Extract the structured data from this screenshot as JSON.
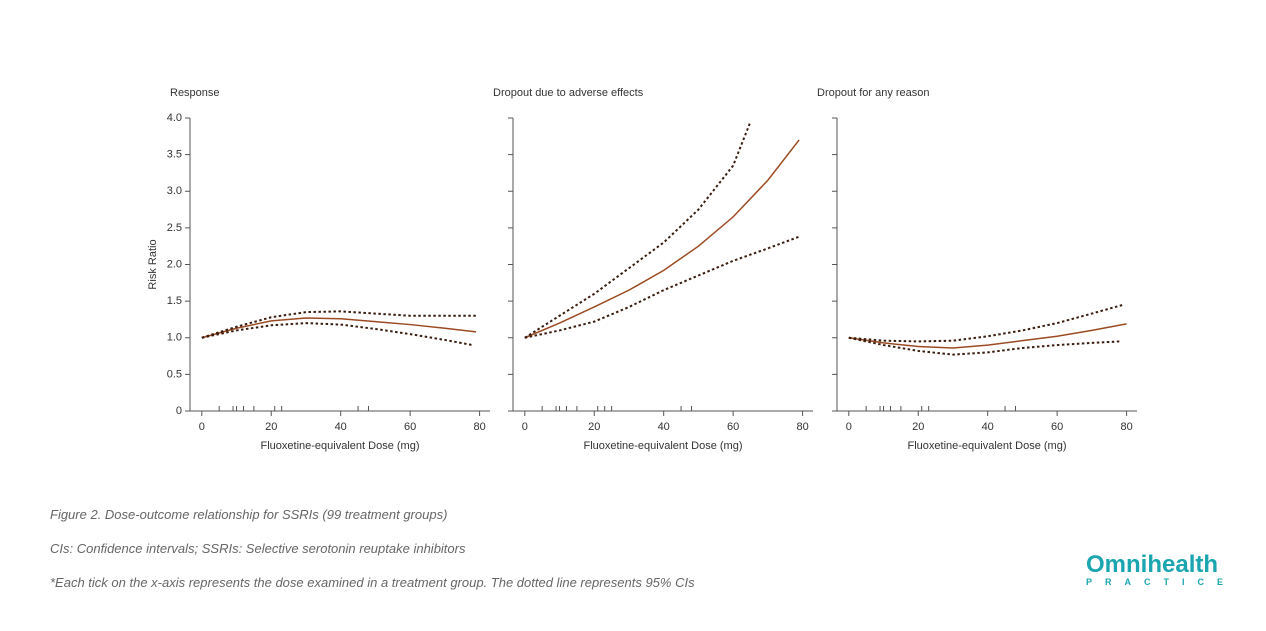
{
  "chart_data": [
    {
      "type": "line",
      "title": "Response",
      "x_label": "Fluoxetine-equivalent Dose (mg)",
      "y_label": "Risk Ratio",
      "xlim": [
        -3.4,
        83
      ],
      "xticks": [
        0,
        20,
        40,
        60,
        80
      ],
      "ylim": [
        0,
        4
      ],
      "yticks": [
        0,
        0.5,
        {
          "value": 1,
          "label": "1.0"
        },
        1.5,
        {
          "value": 2,
          "label": "2.0"
        },
        2.5,
        {
          "value": 3,
          "label": "3.0"
        },
        3.5,
        {
          "value": 4,
          "label": "4.0"
        }
      ],
      "ytick_labels": true,
      "rug": [
        5,
        9,
        10,
        12,
        15,
        21,
        23,
        45,
        48
      ],
      "series": [
        {
          "color": "#9c4a22",
          "dotted": false,
          "x": [
            0,
            10,
            20,
            30,
            40,
            50,
            60,
            70,
            79
          ],
          "values": [
            1.0,
            1.13,
            1.23,
            1.27,
            1.26,
            1.22,
            1.18,
            1.13,
            1.08
          ]
        },
        {
          "color": "#3a1d0e",
          "dotted": true,
          "x": [
            0,
            10,
            20,
            30,
            40,
            50,
            60,
            70,
            79
          ],
          "values": [
            1.0,
            1.15,
            1.28,
            1.35,
            1.36,
            1.33,
            1.3,
            1.3,
            1.3
          ]
        },
        {
          "color": "#3a1d0e",
          "dotted": true,
          "x": [
            0,
            10,
            20,
            30,
            40,
            50,
            60,
            70,
            78
          ],
          "values": [
            1.0,
            1.1,
            1.17,
            1.2,
            1.18,
            1.12,
            1.05,
            0.97,
            0.9
          ]
        }
      ]
    },
    {
      "type": "line",
      "title": "Dropout due to adverse effects",
      "x_label": "Fluoxetine-equivalent Dose (mg)",
      "xlim": [
        -3.4,
        83
      ],
      "xticks": [
        0,
        20,
        40,
        60,
        80
      ],
      "ylim": [
        0,
        4
      ],
      "yticks": [
        0,
        0.5,
        1,
        1.5,
        2,
        2.5,
        3,
        3.5,
        4
      ],
      "ytick_labels": false,
      "rug": [
        5,
        9,
        10,
        12,
        15,
        21,
        23,
        25,
        45,
        48
      ],
      "series": [
        {
          "color": "#9c4a22",
          "dotted": false,
          "x": [
            0,
            10,
            20,
            30,
            40,
            50,
            60,
            70,
            79
          ],
          "values": [
            1.0,
            1.2,
            1.42,
            1.65,
            1.92,
            2.25,
            2.65,
            3.15,
            3.7
          ]
        },
        {
          "color": "#3a1d0e",
          "dotted": true,
          "x": [
            0,
            10,
            20,
            30,
            40,
            50,
            60,
            65
          ],
          "values": [
            1.0,
            1.3,
            1.6,
            1.95,
            2.3,
            2.75,
            3.35,
            3.95
          ]
        },
        {
          "color": "#3a1d0e",
          "dotted": true,
          "x": [
            0,
            10,
            20,
            30,
            40,
            50,
            60,
            70,
            79
          ],
          "values": [
            1.0,
            1.1,
            1.22,
            1.42,
            1.65,
            1.85,
            2.05,
            2.22,
            2.38
          ]
        }
      ]
    },
    {
      "type": "line",
      "title": "Dropout for any reason",
      "x_label": "Fluoxetine-equivalent Dose (mg)",
      "xlim": [
        -3.4,
        83
      ],
      "xticks": [
        0,
        20,
        40,
        60,
        80
      ],
      "ylim": [
        0,
        4
      ],
      "yticks": [
        0,
        0.5,
        1,
        1.5,
        2,
        2.5,
        3,
        3.5,
        4
      ],
      "ytick_labels": false,
      "rug": [
        5,
        9,
        10,
        12,
        15,
        21,
        23,
        45,
        48
      ],
      "series": [
        {
          "color": "#9c4a22",
          "dotted": false,
          "x": [
            0,
            10,
            20,
            30,
            40,
            50,
            60,
            70,
            80
          ],
          "values": [
            1.0,
            0.93,
            0.88,
            0.86,
            0.9,
            0.96,
            1.02,
            1.1,
            1.19
          ]
        },
        {
          "color": "#3a1d0e",
          "dotted": true,
          "x": [
            0,
            10,
            20,
            30,
            40,
            50,
            60,
            70,
            79
          ],
          "values": [
            1.0,
            0.96,
            0.95,
            0.96,
            1.02,
            1.1,
            1.2,
            1.33,
            1.45
          ]
        },
        {
          "color": "#3a1d0e",
          "dotted": true,
          "x": [
            0,
            10,
            20,
            30,
            40,
            50,
            60,
            70,
            78
          ],
          "values": [
            1.0,
            0.9,
            0.82,
            0.77,
            0.8,
            0.86,
            0.9,
            0.93,
            0.95
          ]
        }
      ]
    }
  ],
  "notes": [
    "Figure 2. Dose-outcome relationship for SSRIs (99 treatment groups)",
    "CIs: Confidence intervals; SSRIs: Selective serotonin reuptake inhibitors",
    "*Each tick on the x-axis represents the dose examined in a treatment group. The dotted line represents 95% CIs"
  ],
  "logo": {
    "name": "Omnihealth",
    "sub": "PRACTICE"
  }
}
